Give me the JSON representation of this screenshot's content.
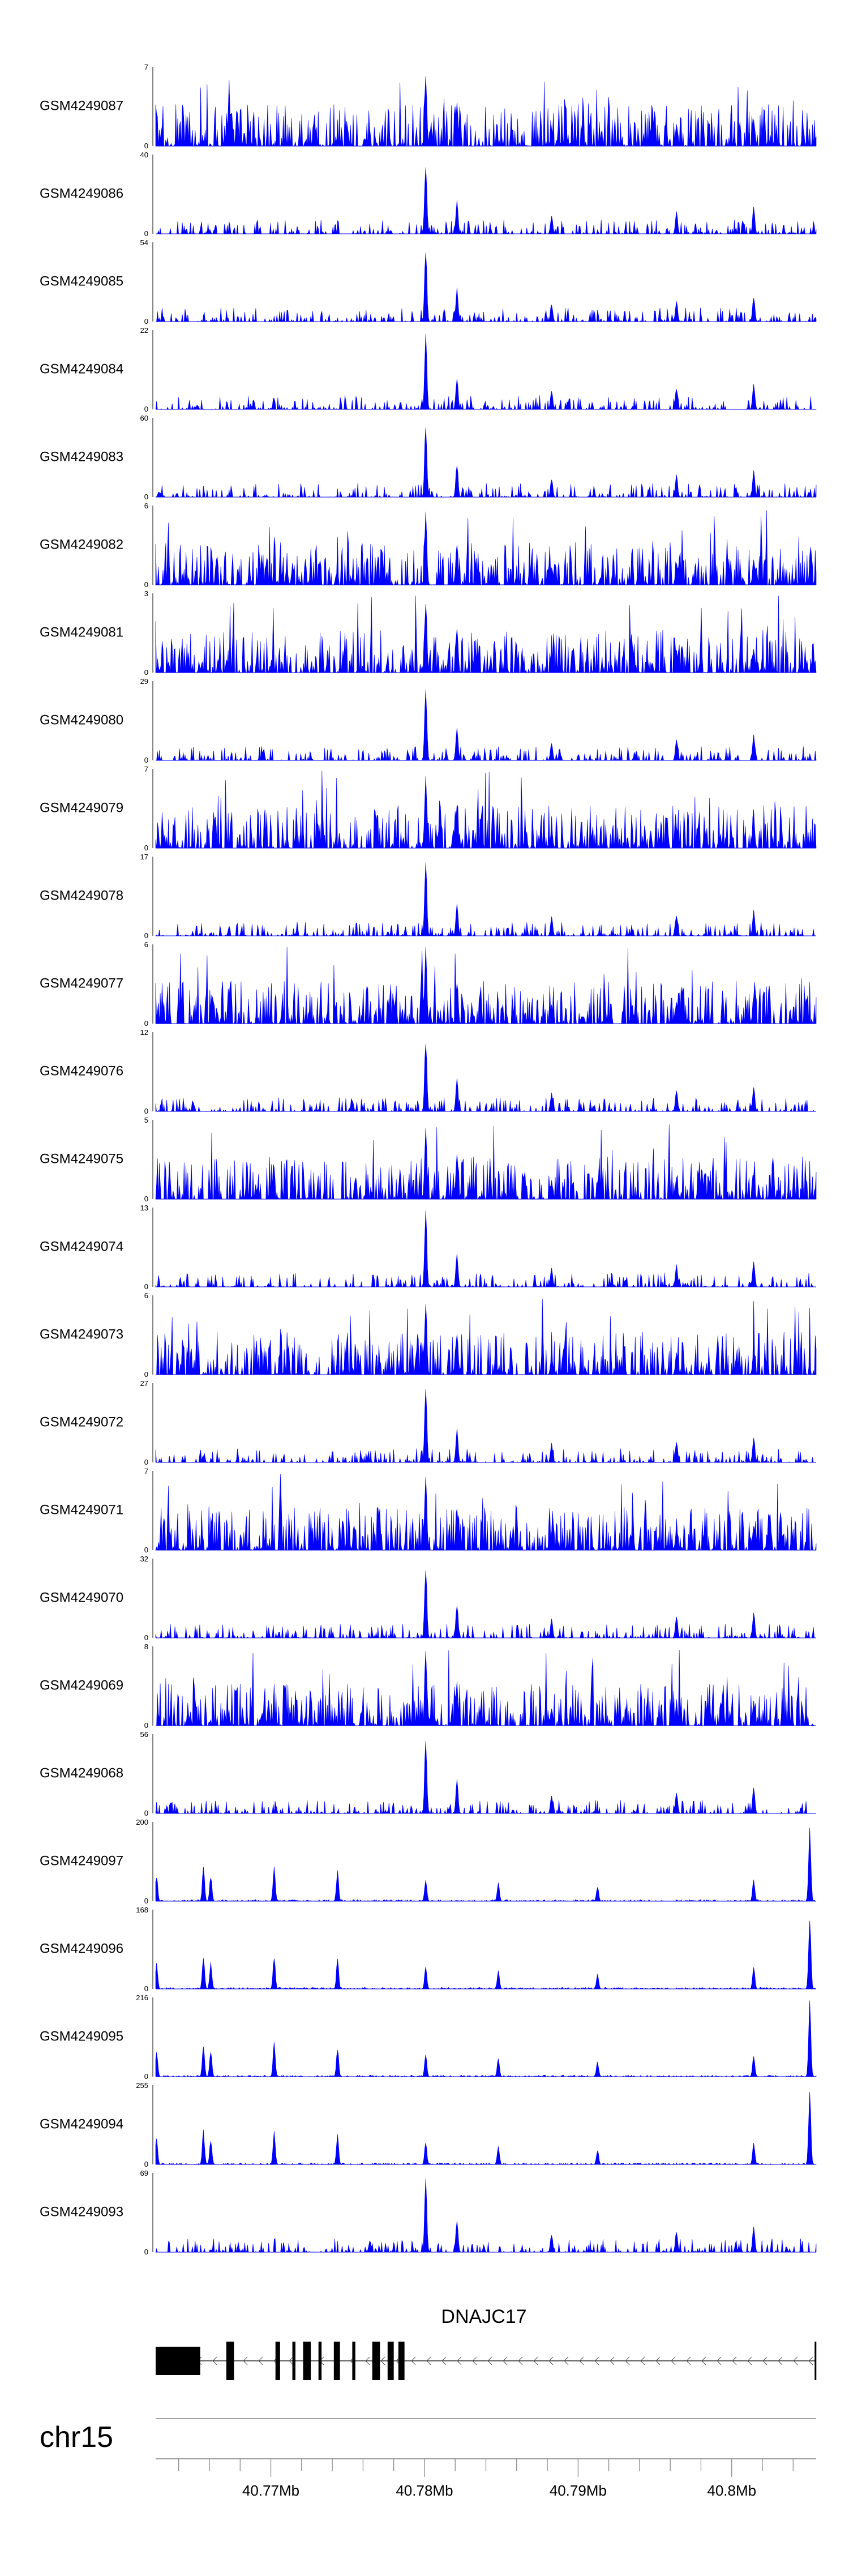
{
  "chart_data": {
    "type": "area",
    "xlim": [
      40.7625,
      40.8055
    ],
    "tracks": [
      {
        "name": "GSM4249087",
        "ymax": "7",
        "ymin": "0",
        "max": 7
      },
      {
        "name": "GSM4249086",
        "ymax": "40",
        "ymin": "0",
        "max": 40
      },
      {
        "name": "GSM4249085",
        "ymax": "54",
        "ymin": "0",
        "max": 54
      },
      {
        "name": "GSM4249084",
        "ymax": "22",
        "ymin": "0",
        "max": 22
      },
      {
        "name": "GSM4249083",
        "ymax": "60",
        "ymin": "0",
        "max": 60
      },
      {
        "name": "GSM4249082",
        "ymax": "6",
        "ymin": "0",
        "max": 6
      },
      {
        "name": "GSM4249081",
        "ymax": "3",
        "ymin": "0",
        "max": 3
      },
      {
        "name": "GSM4249080",
        "ymax": "29",
        "ymin": "0",
        "max": 29
      },
      {
        "name": "GSM4249079",
        "ymax": "7",
        "ymin": "0",
        "max": 7
      },
      {
        "name": "GSM4249078",
        "ymax": "17",
        "ymin": "0",
        "max": 17
      },
      {
        "name": "GSM4249077",
        "ymax": "6",
        "ymin": "0",
        "max": 6
      },
      {
        "name": "GSM4249076",
        "ymax": "12",
        "ymin": "0",
        "max": 12
      },
      {
        "name": "GSM4249075",
        "ymax": "5",
        "ymin": "0",
        "max": 5
      },
      {
        "name": "GSM4249074",
        "ymax": "13",
        "ymin": "0",
        "max": 13
      },
      {
        "name": "GSM4249073",
        "ymax": "6",
        "ymin": "0",
        "max": 6
      },
      {
        "name": "GSM4249072",
        "ymax": "27",
        "ymin": "0",
        "max": 27
      },
      {
        "name": "GSM4249071",
        "ymax": "7",
        "ymin": "0",
        "max": 7
      },
      {
        "name": "GSM4249070",
        "ymax": "32",
        "ymin": "0",
        "max": 32
      },
      {
        "name": "GSM4249069",
        "ymax": "8",
        "ymin": "0",
        "max": 8
      },
      {
        "name": "GSM4249068",
        "ymax": "56",
        "ymin": "0",
        "max": 56
      },
      {
        "name": "GSM4249097",
        "ymax": "200",
        "ymin": "0",
        "max": 200
      },
      {
        "name": "GSM4249096",
        "ymax": "168",
        "ymin": "0",
        "max": 168
      },
      {
        "name": "GSM4249095",
        "ymax": "216",
        "ymin": "0",
        "max": 216
      },
      {
        "name": "GSM4249094",
        "ymax": "255",
        "ymin": "0",
        "max": 255
      },
      {
        "name": "GSM4249093",
        "ymax": "69",
        "ymin": "0",
        "max": 69
      }
    ],
    "gene": {
      "name": "DNAJC17",
      "strand": "-",
      "start": 40.7625,
      "end": 40.8055,
      "exons": [
        [
          40.7625,
          40.7654
        ],
        [
          40.7671,
          40.7676
        ],
        [
          40.7703,
          40.7706
        ],
        [
          40.7714,
          40.7716
        ],
        [
          40.7721,
          40.7726
        ],
        [
          40.7731,
          40.7733
        ],
        [
          40.7741,
          40.7745
        ],
        [
          40.7753,
          40.7755
        ],
        [
          40.7766,
          40.7771
        ],
        [
          40.7776,
          40.778
        ],
        [
          40.7783,
          40.7787
        ],
        [
          40.8054,
          40.8055
        ]
      ]
    },
    "chromosome": "chr15",
    "ticks": [
      40.77,
      40.78,
      40.79,
      40.8
    ],
    "tick_labels": [
      "40.77Mb",
      "40.78Mb",
      "40.79Mb",
      "40.8Mb"
    ],
    "minor_ticks": [
      40.764,
      40.766,
      40.768,
      40.772,
      40.774,
      40.776,
      40.778,
      40.782,
      40.784,
      40.786,
      40.788,
      40.792,
      40.794,
      40.796,
      40.798,
      40.802,
      40.804
    ]
  },
  "colors": {
    "signal": "#0000ff",
    "gene": "#000000",
    "axis": "#808080",
    "text": "#000000"
  }
}
